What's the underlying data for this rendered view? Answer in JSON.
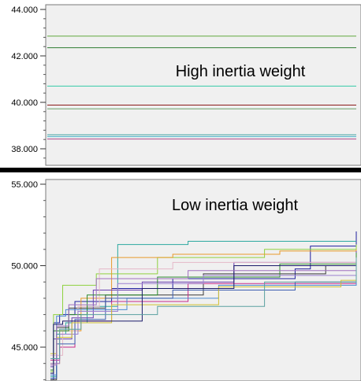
{
  "chart_data": [
    {
      "type": "line",
      "annotation": "High inertia weight",
      "ylim": [
        37.6,
        44.1
      ],
      "y_ticks": [
        "44.000",
        "42.000",
        "40.000",
        "38.000"
      ],
      "y_tick_values": [
        44,
        42,
        40,
        38
      ],
      "grid": false,
      "series": [
        {
          "color": "#5fa83c",
          "values": [
            42.85
          ]
        },
        {
          "color": "#2e7d32",
          "values": [
            42.35
          ]
        },
        {
          "color": "#36c9a8",
          "values": [
            40.7
          ]
        },
        {
          "color": "#8b1a1a",
          "values": [
            39.88
          ]
        },
        {
          "color": "#6aa06a",
          "values": [
            39.72
          ]
        },
        {
          "color": "#3aa0a0",
          "values": [
            38.6
          ]
        },
        {
          "color": "#4ab0c8",
          "values": [
            38.52
          ]
        },
        {
          "color": "#b04a8a",
          "values": [
            38.42
          ]
        }
      ]
    },
    {
      "type": "line",
      "annotation": "Low inertia weight",
      "ylim": [
        43.0,
        55.0
      ],
      "y_ticks": [
        "55.000",
        "50.000",
        "45.000"
      ],
      "y_tick_values": [
        55,
        50,
        45
      ],
      "grid": false,
      "x_range": [
        0,
        100
      ],
      "series": [
        {
          "color": "#1f1f9e",
          "points": [
            [
              0,
              43
            ],
            [
              1,
              46.5
            ],
            [
              3,
              47.0
            ],
            [
              8,
              47.8
            ],
            [
              20,
              48.6
            ],
            [
              40,
              49.2
            ],
            [
              80,
              49.8
            ],
            [
              85,
              51.2
            ],
            [
              100,
              52.1
            ]
          ]
        },
        {
          "color": "#2ca8a0",
          "points": [
            [
              0,
              43.2
            ],
            [
              2,
              45.8
            ],
            [
              5,
              46.5
            ],
            [
              12,
              47.5
            ],
            [
              22,
              51.3
            ],
            [
              45,
              51.5
            ],
            [
              100,
              51.5
            ]
          ]
        },
        {
          "color": "#8fd13f",
          "points": [
            [
              0,
              43.5
            ],
            [
              1,
              47.0
            ],
            [
              4,
              48.8
            ],
            [
              15,
              49.5
            ],
            [
              35,
              50.5
            ],
            [
              70,
              51.0
            ],
            [
              100,
              51.3
            ]
          ]
        },
        {
          "color": "#e89a2a",
          "points": [
            [
              0,
              44.0
            ],
            [
              3,
              46.0
            ],
            [
              10,
              48.0
            ],
            [
              20,
              50.5
            ],
            [
              40,
              50.7
            ],
            [
              75,
              50.9
            ],
            [
              100,
              51.0
            ]
          ]
        },
        {
          "color": "#3a3a3a",
          "points": [
            [
              0,
              43.0
            ],
            [
              2,
              46.2
            ],
            [
              6,
              47.4
            ],
            [
              18,
              48.2
            ],
            [
              50,
              49.5
            ],
            [
              90,
              50.0
            ],
            [
              100,
              50.6
            ]
          ]
        },
        {
          "color": "#6a3fb0",
          "points": [
            [
              0,
              43.8
            ],
            [
              1,
              45.5
            ],
            [
              7,
              46.8
            ],
            [
              14,
              48.5
            ],
            [
              30,
              49.0
            ],
            [
              60,
              50.2
            ],
            [
              100,
              50.9
            ]
          ]
        },
        {
          "color": "#c92a8a",
          "points": [
            [
              0,
              44.2
            ],
            [
              3,
              45.0
            ],
            [
              8,
              46.6
            ],
            [
              20,
              47.8
            ],
            [
              45,
              48.9
            ],
            [
              100,
              49.3
            ]
          ]
        },
        {
          "color": "#e5b8c8",
          "points": [
            [
              0,
              44.5
            ],
            [
              4,
              46.0
            ],
            [
              9,
              47.5
            ],
            [
              16,
              49.8
            ],
            [
              40,
              50.2
            ],
            [
              100,
              50.4
            ]
          ]
        },
        {
          "color": "#4a8ad0",
          "points": [
            [
              0,
              43.3
            ],
            [
              2,
              46.9
            ],
            [
              5,
              47.3
            ],
            [
              25,
              48.0
            ],
            [
              55,
              48.8
            ],
            [
              100,
              49.6
            ]
          ]
        },
        {
          "color": "#2e8b2e",
          "points": [
            [
              0,
              43.6
            ],
            [
              1,
              46.0
            ],
            [
              6,
              47.0
            ],
            [
              12,
              48.2
            ],
            [
              35,
              49.3
            ],
            [
              75,
              50.1
            ],
            [
              100,
              50.8
            ]
          ]
        },
        {
          "color": "#3d5fb0",
          "points": [
            [
              0,
              43.1
            ],
            [
              2,
              45.2
            ],
            [
              8,
              46.7
            ],
            [
              18,
              48.0
            ],
            [
              40,
              48.5
            ],
            [
              80,
              49.0
            ],
            [
              100,
              50.2
            ]
          ]
        },
        {
          "color": "#9a7fd0",
          "points": [
            [
              0,
              44.0
            ],
            [
              3,
              45.8
            ],
            [
              9,
              47.2
            ],
            [
              22,
              48.9
            ],
            [
              50,
              49.4
            ],
            [
              100,
              49.9
            ]
          ]
        },
        {
          "color": "#d0c030",
          "points": [
            [
              0,
              44.6
            ],
            [
              2,
              45.6
            ],
            [
              7,
              46.5
            ],
            [
              20,
              47.6
            ],
            [
              55,
              48.7
            ],
            [
              95,
              49.1
            ],
            [
              100,
              49.1
            ]
          ]
        },
        {
          "color": "#1a1a6a",
          "points": [
            [
              0,
              43.4
            ],
            [
              1,
              46.4
            ],
            [
              4,
              46.6
            ],
            [
              30,
              48.6
            ],
            [
              60,
              50.0
            ],
            [
              100,
              50.3
            ]
          ]
        },
        {
          "color": "#a070c0",
          "points": [
            [
              0,
              43.9
            ],
            [
              2,
              46.3
            ],
            [
              6,
              47.6
            ],
            [
              15,
              49.2
            ],
            [
              45,
              49.7
            ],
            [
              100,
              50.1
            ]
          ]
        },
        {
          "color": "#5aa0a0",
          "points": [
            [
              0,
              44.3
            ],
            [
              3,
              46.1
            ],
            [
              10,
              47.0
            ],
            [
              35,
              47.5
            ],
            [
              70,
              49.0
            ],
            [
              100,
              50.5
            ]
          ]
        }
      ]
    }
  ]
}
